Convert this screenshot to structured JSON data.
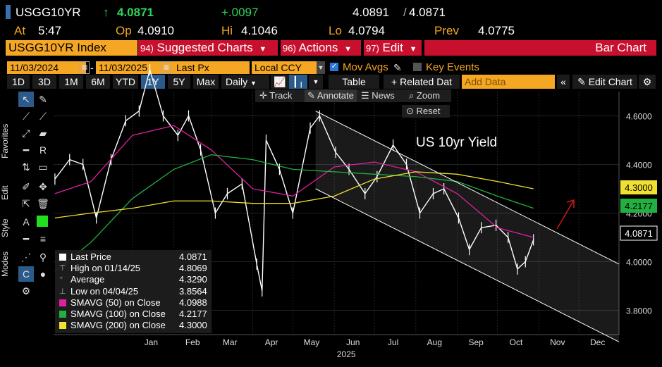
{
  "header": {
    "ticker": "USGG10YR",
    "last": "4.0871",
    "change": "+.0097",
    "bid_ask_bid": "4.0891",
    "bid_ask_ask": "4.0871",
    "time_label": "At",
    "time": "5:47",
    "open_label": "Op",
    "open": "4.0910",
    "high_label": "Hi",
    "high": "4.1046",
    "low_label": "Lo",
    "low": "4.0794",
    "prev_label": "Prev",
    "prev": "4.0775",
    "up_arrow": "↑"
  },
  "menubar": {
    "security": "USGG10YR Index",
    "suggested_num": "94)",
    "suggested": "Suggested Charts",
    "actions_num": "96)",
    "actions": "Actions",
    "edit_num": "97)",
    "edit": "Edit",
    "chart_type": "Bar Chart"
  },
  "controls": {
    "start_date": "11/03/2024",
    "end_date": "11/03/2025",
    "field": "Last Px",
    "currency": "Local CCY",
    "mov_avgs": "Mov Avgs",
    "key_events": "Key Events"
  },
  "toolbar": {
    "ranges": [
      "1D",
      "3D",
      "1M",
      "6M",
      "YTD",
      "1Y",
      "5Y",
      "Max"
    ],
    "selected_range": "1Y",
    "period": "Daily",
    "table": "Table",
    "related": "+ Related Dat",
    "add_data_placeholder": "Add Data",
    "edit_chart": "Edit Chart"
  },
  "chart_tools": {
    "track": "Track",
    "annotate": "Annotate",
    "news": "News",
    "zoom": "Zoom",
    "reset": "Reset"
  },
  "side_tabs": [
    "Favorites",
    "Edit",
    "Style",
    "Modes"
  ],
  "legend": [
    {
      "name": "Last Price",
      "value": "4.0871",
      "color": "#ffffff",
      "marker": "square"
    },
    {
      "name": "High on 01/14/25",
      "value": "4.8069",
      "color": "#aaaaaa",
      "marker": "high"
    },
    {
      "name": "Average",
      "value": "4.3290",
      "color": "#aaaaaa",
      "marker": "avg"
    },
    {
      "name": "Low on 04/04/25",
      "value": "3.8564",
      "color": "#aaaaaa",
      "marker": "low"
    },
    {
      "name": "SMAVG (50)  on Close",
      "value": "4.0988",
      "color": "#e020a0",
      "marker": "square"
    },
    {
      "name": "SMAVG (100)  on Close",
      "value": "4.2177",
      "color": "#22b040",
      "marker": "square"
    },
    {
      "name": "SMAVG (200)  on Close",
      "value": "4.3000",
      "color": "#f0e030",
      "marker": "square"
    }
  ],
  "chart_data": {
    "type": "line",
    "title": "",
    "annotation": "US 10yr Yield",
    "xlabel": "2025",
    "ylabel": "",
    "x_ticks": [
      "Jan",
      "Feb",
      "Mar",
      "Apr",
      "May",
      "Jun",
      "Jul",
      "Aug",
      "Sep",
      "Oct",
      "Nov",
      "Dec"
    ],
    "y_ticks": [
      "4.6000",
      "4.4000",
      "4.2000",
      "4.0000",
      "3.8000"
    ],
    "ylim": [
      3.7,
      4.7
    ],
    "xlim": [
      "2024-11-03",
      "2025-12-31"
    ],
    "price_labels": [
      {
        "value": "4.3000",
        "color": "#f0e030"
      },
      {
        "value": "4.2177",
        "color": "#22b040"
      },
      {
        "value": "4.0871",
        "color": "#ffffff"
      }
    ],
    "series": [
      {
        "name": "Last Price",
        "color": "#ffffff",
        "x": [
          "2024-11-04",
          "2024-11-15",
          "2024-11-25",
          "2024-12-05",
          "2024-12-16",
          "2024-12-27",
          "2025-01-06",
          "2025-01-14",
          "2025-01-24",
          "2025-02-04",
          "2025-02-12",
          "2025-02-21",
          "2025-03-04",
          "2025-03-13",
          "2025-03-24",
          "2025-04-04",
          "2025-04-08",
          "2025-04-11",
          "2025-04-21",
          "2025-05-01",
          "2025-05-14",
          "2025-05-21",
          "2025-06-02",
          "2025-06-12",
          "2025-06-24",
          "2025-07-03",
          "2025-07-15",
          "2025-07-25",
          "2025-08-04",
          "2025-08-14",
          "2025-08-22",
          "2025-09-02",
          "2025-09-10",
          "2025-09-19",
          "2025-09-30",
          "2025-10-09",
          "2025-10-16",
          "2025-10-22",
          "2025-10-28"
        ],
        "y": [
          4.34,
          4.42,
          4.4,
          4.18,
          4.42,
          4.58,
          4.62,
          4.79,
          4.6,
          4.52,
          4.6,
          4.46,
          4.2,
          4.28,
          4.32,
          3.99,
          3.88,
          4.5,
          4.38,
          4.2,
          4.55,
          4.6,
          4.45,
          4.38,
          4.28,
          4.35,
          4.48,
          4.4,
          4.2,
          4.28,
          4.3,
          4.18,
          4.05,
          4.14,
          4.15,
          4.1,
          3.97,
          4.0,
          4.09
        ]
      },
      {
        "name": "SMAVG (50)",
        "color": "#e020a0",
        "x": [
          "2024-11-04",
          "2024-12-01",
          "2025-01-01",
          "2025-02-01",
          "2025-03-01",
          "2025-04-01",
          "2025-05-01",
          "2025-06-01",
          "2025-07-01",
          "2025-08-01",
          "2025-09-01",
          "2025-10-01",
          "2025-10-28"
        ],
        "y": [
          4.28,
          4.33,
          4.52,
          4.56,
          4.46,
          4.3,
          4.27,
          4.39,
          4.41,
          4.37,
          4.28,
          4.14,
          4.1
        ]
      },
      {
        "name": "SMAVG (100)",
        "color": "#22b040",
        "x": [
          "2024-11-04",
          "2024-12-01",
          "2025-01-01",
          "2025-02-01",
          "2025-03-01",
          "2025-04-01",
          "2025-05-01",
          "2025-06-01",
          "2025-07-01",
          "2025-08-01",
          "2025-09-01",
          "2025-10-01",
          "2025-10-28"
        ],
        "y": [
          3.96,
          4.08,
          4.26,
          4.38,
          4.44,
          4.42,
          4.38,
          4.37,
          4.36,
          4.35,
          4.33,
          4.27,
          4.22
        ]
      },
      {
        "name": "SMAVG (200)",
        "color": "#f0e030",
        "x": [
          "2024-11-04",
          "2024-12-01",
          "2025-01-01",
          "2025-02-01",
          "2025-03-01",
          "2025-04-01",
          "2025-05-01",
          "2025-06-01",
          "2025-07-01",
          "2025-08-01",
          "2025-09-01",
          "2025-10-01",
          "2025-10-28"
        ],
        "y": [
          4.18,
          4.2,
          4.22,
          4.25,
          4.25,
          4.24,
          4.24,
          4.27,
          4.34,
          4.37,
          4.36,
          4.33,
          4.3
        ]
      },
      {
        "name": "Channel upper",
        "color": "#ffffff",
        "x": [
          "2025-05-18",
          "2025-12-31"
        ],
        "y": [
          4.62,
          3.99
        ]
      },
      {
        "name": "Channel lower",
        "color": "#ffffff",
        "x": [
          "2025-05-18",
          "2025-12-31"
        ],
        "y": [
          4.3,
          3.67
        ]
      }
    ]
  }
}
